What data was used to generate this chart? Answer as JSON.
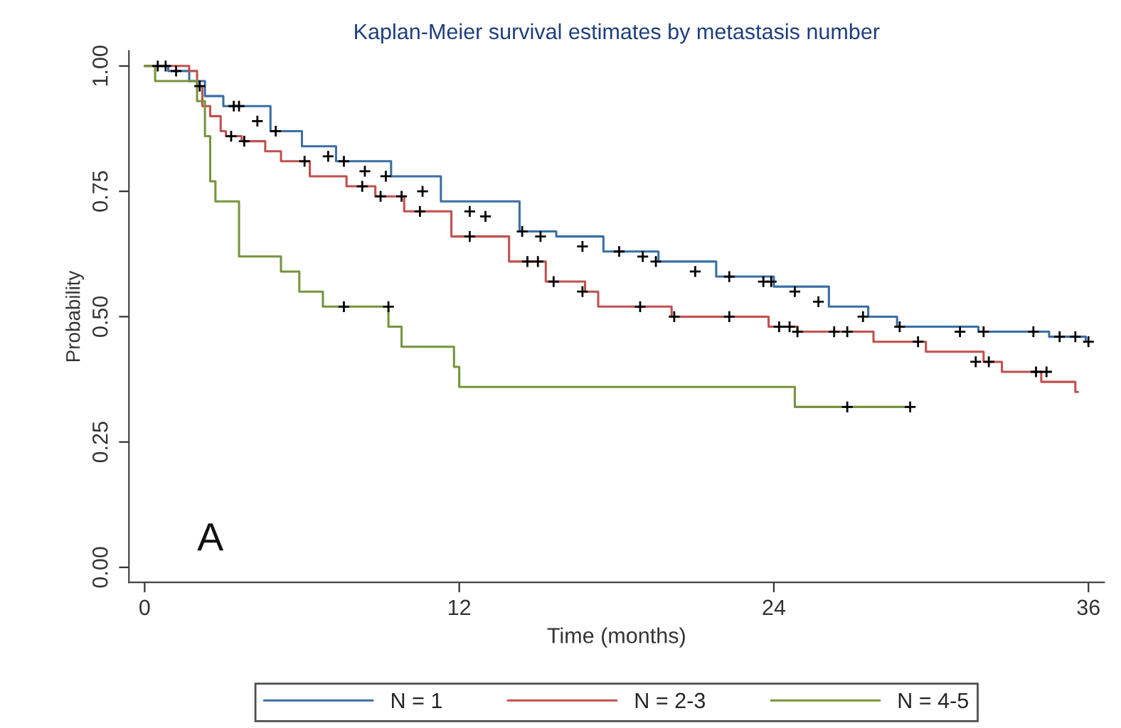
{
  "chart_data": {
    "type": "step",
    "title": "Kaplan-Meier survival estimates by metastasis number",
    "xlabel": "Time (months)",
    "ylabel": "Probability",
    "annotations": [
      "A"
    ],
    "xlim": [
      -0.6,
      36.6
    ],
    "ylim": [
      -0.03,
      1.03
    ],
    "xticks": [
      0,
      12,
      24,
      36
    ],
    "yticks": [
      {
        "value": 0,
        "label": "0.00"
      },
      {
        "value": 0.25,
        "label": "0.25"
      },
      {
        "value": 0.5,
        "label": "0.50"
      },
      {
        "value": 0.75,
        "label": "0.75"
      },
      {
        "value": 1,
        "label": "1.00"
      }
    ],
    "grid": false,
    "legend": "bottom",
    "series": [
      {
        "name": "N = 1",
        "color": "#3a6ea5",
        "x": [
          0,
          0.9,
          1.7,
          2.3,
          3.0,
          4.8,
          6.0,
          7.3,
          9.4,
          11.3,
          14.3,
          15.7,
          17.5,
          19.6,
          21.8,
          24.0,
          26.1,
          27.6,
          28.7,
          31.8,
          34.5,
          35.9,
          36.0
        ],
        "values": [
          1,
          0.99,
          0.97,
          0.94,
          0.92,
          0.87,
          0.84,
          0.81,
          0.78,
          0.73,
          0.67,
          0.66,
          0.63,
          0.61,
          0.58,
          0.56,
          0.52,
          0.5,
          0.48,
          0.47,
          0.46,
          0.45,
          0.45
        ]
      },
      {
        "name": "N = 2-3",
        "color": "#c0504d",
        "x": [
          0,
          1.7,
          2.0,
          2.2,
          2.5,
          2.9,
          3.1,
          3.7,
          4.6,
          5.2,
          6.3,
          7.7,
          8.8,
          9.9,
          11.7,
          13.9,
          15.3,
          16.8,
          17.3,
          20.1,
          23.8,
          24.9,
          27.8,
          29.8,
          32.0,
          32.7,
          34.2,
          35.5,
          35.6
        ],
        "values": [
          1,
          0.99,
          0.96,
          0.92,
          0.9,
          0.87,
          0.86,
          0.85,
          0.83,
          0.81,
          0.78,
          0.76,
          0.74,
          0.71,
          0.66,
          0.61,
          0.57,
          0.55,
          0.52,
          0.5,
          0.48,
          0.47,
          0.45,
          0.43,
          0.41,
          0.39,
          0.37,
          0.35,
          0.35
        ]
      },
      {
        "name": "N = 4-5",
        "color": "#77933c",
        "x": [
          0,
          0.4,
          2.0,
          2.3,
          2.5,
          2.7,
          3.6,
          5.2,
          5.9,
          6.8,
          9.3,
          9.8,
          11.8,
          12.0,
          24.8,
          29.2
        ],
        "values": [
          1,
          0.97,
          0.93,
          0.86,
          0.77,
          0.73,
          0.62,
          0.59,
          0.55,
          0.52,
          0.48,
          0.44,
          0.4,
          0.36,
          0.32,
          0.32
        ]
      },
      {
        "type": "scatter",
        "marker": "cross",
        "color": "#000000",
        "x": [
          0.5,
          0.8,
          1.2,
          3.4,
          3.6,
          4.3,
          5.0,
          7.0,
          7.6,
          8.4,
          9.2,
          10.6,
          12.4,
          13.0,
          14.4,
          15.1,
          16.7,
          18.1,
          19.0,
          19.5,
          21.0,
          22.3,
          23.6,
          23.9,
          24.8,
          25.7,
          27.4,
          28.8,
          31.1,
          32.0,
          33.9,
          34.9,
          35.5,
          36.0
        ],
        "values": [
          1,
          1,
          0.99,
          0.92,
          0.92,
          0.89,
          0.87,
          0.82,
          0.81,
          0.79,
          0.78,
          0.75,
          0.71,
          0.7,
          0.67,
          0.66,
          0.64,
          0.63,
          0.62,
          0.61,
          0.59,
          0.58,
          0.57,
          0.57,
          0.55,
          0.53,
          0.5,
          0.48,
          0.47,
          0.47,
          0.47,
          0.46,
          0.46,
          0.45
        ]
      },
      {
        "type": "scatter",
        "marker": "cross",
        "color": "#000000",
        "x": [
          2.1,
          3.3,
          3.8,
          6.1,
          8.3,
          9.0,
          9.8,
          10.5,
          12.4,
          14.6,
          15.0,
          15.6,
          16.7,
          18.9,
          20.2,
          22.3,
          24.2,
          24.6,
          24.9,
          26.3,
          26.8,
          29.5,
          31.7,
          32.2,
          34.0,
          34.4
        ],
        "values": [
          0.96,
          0.86,
          0.85,
          0.81,
          0.76,
          0.74,
          0.74,
          0.71,
          0.66,
          0.61,
          0.61,
          0.57,
          0.55,
          0.52,
          0.5,
          0.5,
          0.48,
          0.48,
          0.47,
          0.47,
          0.47,
          0.45,
          0.41,
          0.41,
          0.39,
          0.39
        ]
      },
      {
        "type": "scatter",
        "marker": "cross",
        "color": "#000000",
        "x": [
          7.6,
          9.3,
          26.8,
          29.2
        ],
        "values": [
          0.52,
          0.52,
          0.32,
          0.32
        ]
      }
    ]
  }
}
